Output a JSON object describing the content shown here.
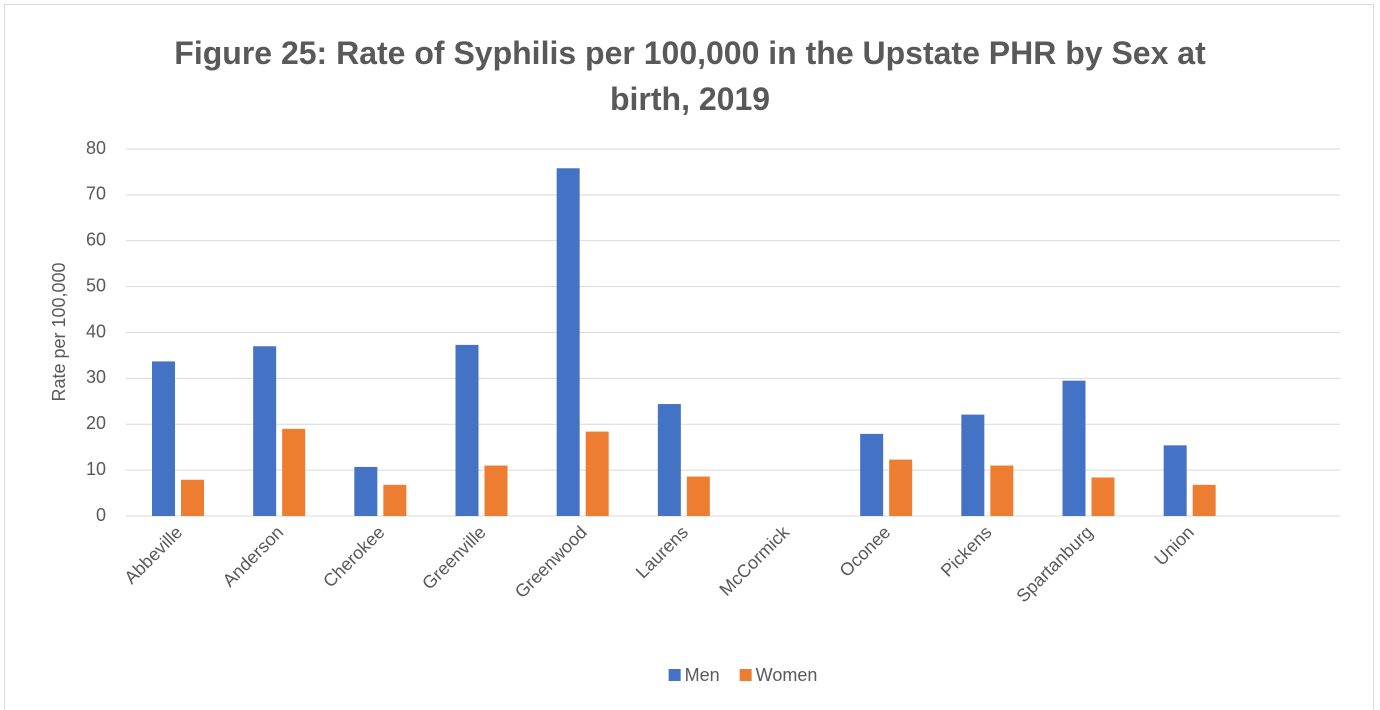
{
  "chart_data": {
    "type": "bar",
    "title": "Figure 25: Rate of Syphilis per 100,000 in the Upstate PHR by Sex at birth, 2019",
    "y_label": "Rate per 100,000",
    "categories": [
      "Abbeville",
      "Anderson",
      "Cherokee",
      "Greenville",
      "Greenwood",
      "Laurens",
      "McCormick",
      "Oconee",
      "Pickens",
      "Spartanburg",
      "Union",
      null
    ],
    "series": [
      {
        "name": "Men",
        "color": "#4472c4",
        "values": [
          33.7,
          37.0,
          10.7,
          37.3,
          75.8,
          24.4,
          0,
          17.9,
          22.1,
          29.5,
          15.4,
          null
        ]
      },
      {
        "name": "Women",
        "color": "#ed7d31",
        "values": [
          7.9,
          19.0,
          6.8,
          11.0,
          18.4,
          8.6,
          0,
          12.3,
          11.0,
          8.4,
          6.8,
          null
        ]
      }
    ],
    "ylim": [
      0,
      80
    ],
    "yticks": [
      0,
      10,
      20,
      30,
      40,
      50,
      60,
      70,
      80
    ],
    "grid": true,
    "legend": "bottom"
  }
}
